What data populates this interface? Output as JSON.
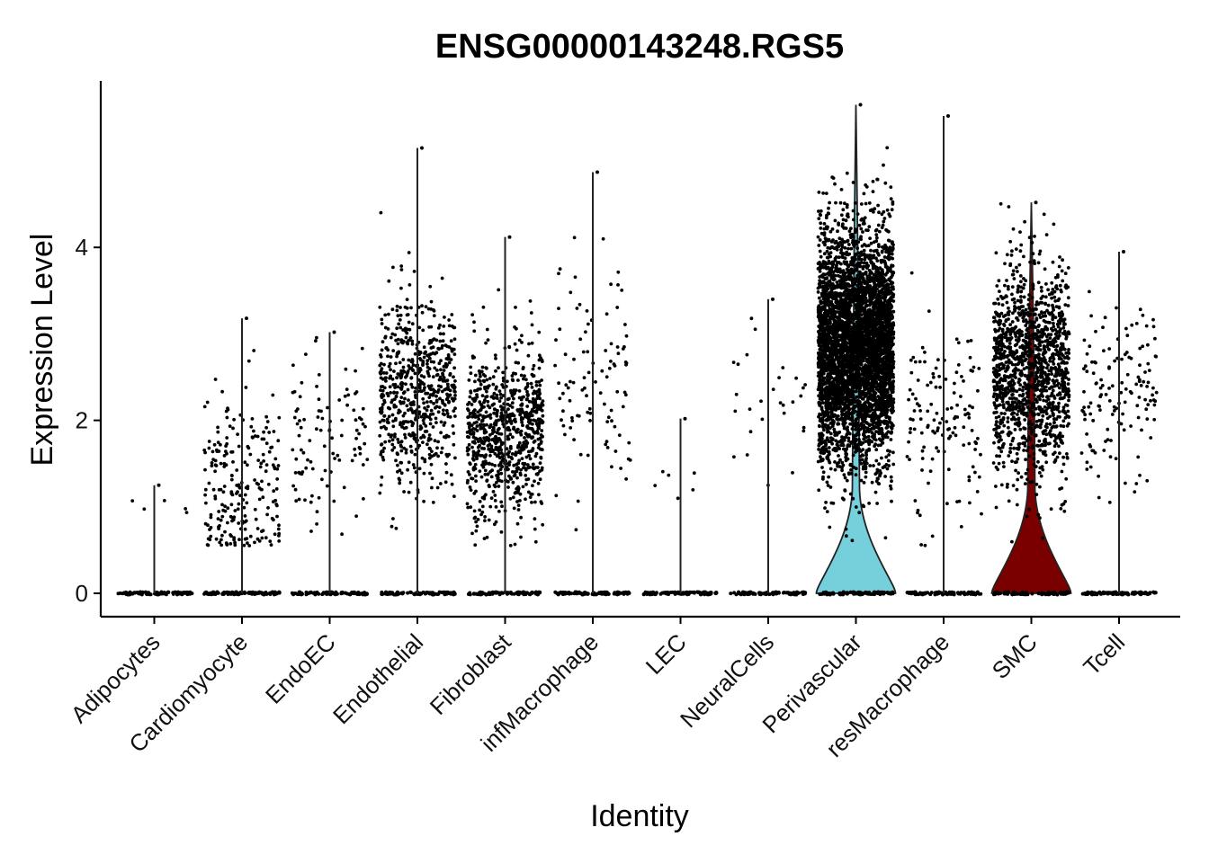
{
  "chart_data": {
    "type": "violin",
    "title": "ENSG00000143248.RGS5",
    "xlabel": "Identity",
    "ylabel": "Expression Level",
    "ylim": [
      -0.28,
      5.95
    ],
    "yticks": [
      0,
      2,
      4
    ],
    "grid": false,
    "legend": "none",
    "point_color": "#000000",
    "categories": [
      "Adipocytes",
      "Cardiomyocyte",
      "EndoEC",
      "Endothelial",
      "Fibroblast",
      "infMacrophage",
      "LEC",
      "NeuralCells",
      "Perivascular",
      "resMacrophage",
      "SMC",
      "Tcell"
    ],
    "series": [
      {
        "category": "Adipocytes",
        "max": 1.25,
        "nonzero_cells": 5,
        "center": 1.1,
        "sd": 0.12,
        "violin_fill": "#ffffff"
      },
      {
        "category": "Cardiomyocyte",
        "max": 3.18,
        "nonzero_cells": 230,
        "center": 1.2,
        "sd": 0.55,
        "violin_fill": "#ffffff"
      },
      {
        "category": "EndoEC",
        "max": 3.02,
        "nonzero_cells": 100,
        "center": 1.9,
        "sd": 0.5,
        "violin_fill": "#ffffff"
      },
      {
        "category": "Endothelial",
        "max": 5.15,
        "nonzero_cells": 650,
        "center": 2.35,
        "sd": 0.55,
        "violin_fill": "#ffffff"
      },
      {
        "category": "Fibroblast",
        "max": 4.12,
        "nonzero_cells": 800,
        "center": 1.85,
        "sd": 0.5,
        "violin_fill": "#ffffff"
      },
      {
        "category": "infMacrophage",
        "max": 4.87,
        "nonzero_cells": 100,
        "center": 2.5,
        "sd": 0.65,
        "violin_fill": "#ffffff"
      },
      {
        "category": "LEC",
        "max": 2.02,
        "nonzero_cells": 6,
        "center": 1.25,
        "sd": 0.2,
        "violin_fill": "#ffffff"
      },
      {
        "category": "NeuralCells",
        "max": 3.4,
        "nonzero_cells": 28,
        "center": 2.2,
        "sd": 0.6,
        "violin_fill": "#ffffff"
      },
      {
        "category": "Perivascular",
        "max": 5.65,
        "nonzero_cells": 4500,
        "center": 2.85,
        "sd": 0.65,
        "violin_fill": "#76D0DC"
      },
      {
        "category": "resMacrophage",
        "max": 5.52,
        "nonzero_cells": 130,
        "center": 2.0,
        "sd": 0.55,
        "violin_fill": "#ffffff"
      },
      {
        "category": "SMC",
        "max": 4.52,
        "nonzero_cells": 1400,
        "center": 2.55,
        "sd": 0.6,
        "violin_fill": "#7A0000"
      },
      {
        "category": "Tcell",
        "max": 3.95,
        "nonzero_cells": 140,
        "center": 2.3,
        "sd": 0.5,
        "violin_fill": "#ffffff"
      }
    ]
  }
}
